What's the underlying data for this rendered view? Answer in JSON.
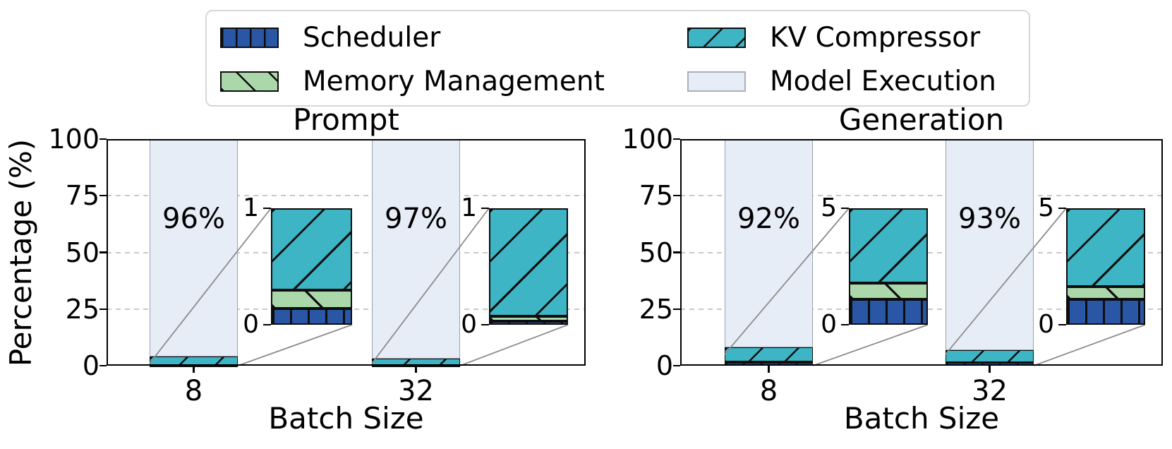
{
  "legend": {
    "items": [
      {
        "label": "Scheduler",
        "color": "#2a57a5",
        "hatch": "|"
      },
      {
        "label": "Memory Management",
        "color": "#aad8ab",
        "hatch": "\\"
      },
      {
        "label": "KV Compressor",
        "color": "#3eb5c4",
        "hatch": "/"
      },
      {
        "label": "Model Execution",
        "color": "#e7edf6",
        "hatch": ""
      }
    ]
  },
  "chart_data": [
    {
      "type": "bar",
      "stacked": true,
      "title": "Prompt",
      "xlabel": "Batch Size",
      "ylabel": "Percentage (%)",
      "ylim": [
        0,
        100
      ],
      "yticks": [
        0,
        25,
        50,
        75,
        100
      ],
      "grid": "dashed horizontal at 25/50/75",
      "categories": [
        "8",
        "32"
      ],
      "series": [
        {
          "name": "Scheduler",
          "values": [
            0.14,
            0.03
          ]
        },
        {
          "name": "Memory Management",
          "values": [
            0.16,
            0.04
          ]
        },
        {
          "name": "KV Compressor",
          "values": [
            3.7,
            2.93
          ]
        },
        {
          "name": "Model Execution",
          "values": [
            96,
            97
          ]
        }
      ],
      "bar_labels": [
        "96%",
        "97%"
      ],
      "insets": [
        {
          "category": "8",
          "ylim": [
            0,
            1
          ],
          "yticks": [
            0,
            1
          ],
          "note": "KV Compressor clipped at top"
        },
        {
          "category": "32",
          "ylim": [
            0,
            1
          ],
          "yticks": [
            0,
            1
          ],
          "note": "KV Compressor clipped at top"
        }
      ]
    },
    {
      "type": "bar",
      "stacked": true,
      "title": "Generation",
      "xlabel": "Batch Size",
      "ylabel": "",
      "ylim": [
        0,
        100
      ],
      "yticks": [
        0,
        25,
        50,
        75,
        100
      ],
      "grid": "dashed horizontal at 25/50/75",
      "categories": [
        "8",
        "32"
      ],
      "series": [
        {
          "name": "Scheduler",
          "values": [
            1.1,
            1.1
          ]
        },
        {
          "name": "Memory Management",
          "values": [
            0.7,
            0.55
          ]
        },
        {
          "name": "KV Compressor",
          "values": [
            6.2,
            5.35
          ]
        },
        {
          "name": "Model Execution",
          "values": [
            92,
            93
          ]
        }
      ],
      "bar_labels": [
        "92%",
        "93%"
      ],
      "insets": [
        {
          "category": "8",
          "ylim": [
            0,
            5
          ],
          "yticks": [
            0,
            5
          ],
          "note": "KV Compressor clipped at top"
        },
        {
          "category": "32",
          "ylim": [
            0,
            5
          ],
          "yticks": [
            0,
            5
          ],
          "note": "KV Compressor clipped at top"
        }
      ]
    }
  ]
}
